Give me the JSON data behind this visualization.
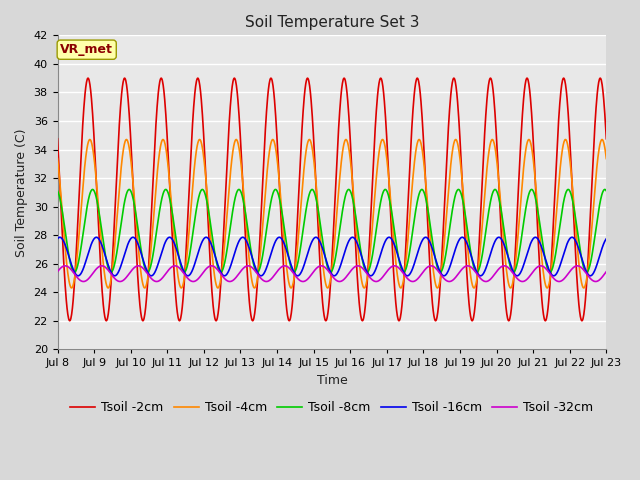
{
  "title": "Soil Temperature Set 3",
  "xlabel": "Time",
  "ylabel": "Soil Temperature (C)",
  "ylim": [
    20,
    42
  ],
  "annotation": "VR_met",
  "x_tick_labels": [
    "Jul 8",
    "Jul 9",
    "Jul 10",
    "Jul 11",
    "Jul 12",
    "Jul 13",
    "Jul 14",
    "Jul 15",
    "Jul 16",
    "Jul 17",
    "Jul 18",
    "Jul 19",
    "Jul 20",
    "Jul 21",
    "Jul 22",
    "Jul 23"
  ],
  "colors": {
    "Tsoil -2cm": "#dd0000",
    "Tsoil -4cm": "#ff8800",
    "Tsoil -8cm": "#00cc00",
    "Tsoil -16cm": "#0000ee",
    "Tsoil -32cm": "#cc00cc"
  },
  "bg_color": "#d8d8d8",
  "plot_bg": "#e8e8e8",
  "grid_color": "#ffffff",
  "title_fontsize": 11,
  "label_fontsize": 9,
  "tick_fontsize": 8,
  "legend_fontsize": 9,
  "linewidth": 1.2
}
